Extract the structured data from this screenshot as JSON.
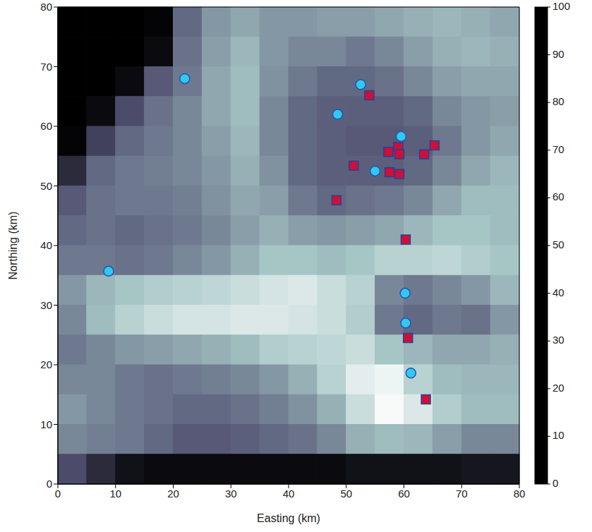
{
  "chart_data": {
    "type": "scatter",
    "x_label": "Easting (km)",
    "y_label": "Northing (km)",
    "xlim": [
      0,
      80
    ],
    "ylim": [
      0,
      80
    ],
    "xticks": [
      0,
      10,
      20,
      30,
      40,
      50,
      60,
      70,
      80
    ],
    "yticks": [
      0,
      10,
      20,
      30,
      40,
      50,
      60,
      70,
      80
    ],
    "grid": false,
    "series": [
      {
        "type": "scatter",
        "marker": "circle",
        "color": "#33c8f0",
        "x": [
          22,
          52.5,
          48.5,
          59.5,
          55,
          8.8,
          60.2,
          60.3,
          61.2
        ],
        "y": [
          68,
          67,
          62,
          58.3,
          52.5,
          35.7,
          32,
          27,
          18.6
        ]
      },
      {
        "type": "scatter",
        "marker": "square",
        "color": "#cc1038",
        "x": [
          54,
          57.3,
          59,
          59.2,
          63.5,
          65.3,
          51.3,
          57.5,
          59.2,
          48.3,
          60.3,
          60.7,
          63.8
        ],
        "y": [
          65.2,
          55.7,
          56.5,
          55.3,
          55.3,
          56.8,
          53.4,
          52.3,
          52,
          47.6,
          41,
          24.5,
          14.2
        ]
      }
    ],
    "heatmap": {
      "x_edges": [
        0,
        5,
        10,
        15,
        20,
        25,
        30,
        35,
        40,
        45,
        50,
        55,
        60,
        65,
        70,
        75,
        80
      ],
      "y_edges": [
        80,
        75,
        70,
        65,
        60,
        55,
        50,
        45,
        40,
        35,
        30,
        25,
        20,
        15,
        10,
        5,
        0
      ],
      "values": [
        [
          0,
          0,
          0,
          2,
          45,
          60,
          65,
          60,
          60,
          62,
          62,
          65,
          68,
          70,
          68,
          65
        ],
        [
          0,
          0,
          0,
          5,
          48,
          62,
          70,
          60,
          55,
          55,
          50,
          55,
          62,
          68,
          70,
          68
        ],
        [
          0,
          0,
          5,
          40,
          50,
          65,
          72,
          58,
          50,
          45,
          45,
          48,
          55,
          62,
          65,
          65
        ],
        [
          0,
          5,
          35,
          48,
          55,
          65,
          72,
          55,
          45,
          42,
          42,
          42,
          45,
          55,
          60,
          62
        ],
        [
          2,
          30,
          45,
          50,
          55,
          62,
          70,
          55,
          45,
          42,
          40,
          40,
          42,
          50,
          60,
          65
        ],
        [
          20,
          45,
          50,
          52,
          55,
          60,
          68,
          58,
          45,
          42,
          42,
          42,
          45,
          55,
          65,
          70
        ],
        [
          40,
          48,
          50,
          50,
          52,
          58,
          65,
          62,
          50,
          45,
          48,
          50,
          55,
          65,
          72,
          72
        ],
        [
          45,
          48,
          45,
          48,
          50,
          55,
          62,
          68,
          62,
          60,
          62,
          65,
          70,
          75,
          75,
          72
        ],
        [
          50,
          50,
          48,
          50,
          55,
          60,
          68,
          75,
          75,
          72,
          75,
          80,
          80,
          82,
          78,
          75
        ],
        [
          60,
          70,
          75,
          78,
          80,
          82,
          85,
          88,
          90,
          85,
          80,
          55,
          50,
          55,
          60,
          70
        ],
        [
          55,
          72,
          80,
          85,
          88,
          88,
          90,
          90,
          88,
          85,
          78,
          50,
          45,
          50,
          48,
          60
        ],
        [
          50,
          55,
          60,
          62,
          65,
          68,
          72,
          78,
          80,
          82,
          85,
          75,
          70,
          65,
          65,
          68
        ],
        [
          55,
          55,
          50,
          48,
          50,
          52,
          55,
          60,
          68,
          80,
          92,
          95,
          80,
          72,
          70,
          70
        ],
        [
          60,
          55,
          50,
          48,
          45,
          45,
          48,
          52,
          58,
          68,
          85,
          98,
          90,
          78,
          72,
          72
        ],
        [
          55,
          52,
          50,
          45,
          40,
          40,
          42,
          45,
          48,
          55,
          68,
          72,
          70,
          62,
          55,
          55
        ],
        [
          35,
          20,
          8,
          5,
          5,
          5,
          5,
          5,
          5,
          5,
          8,
          8,
          8,
          8,
          10,
          10
        ]
      ]
    },
    "colorbar": {
      "range": [
        0,
        100
      ],
      "ticks": [
        0,
        10,
        20,
        30,
        40,
        50,
        60,
        70,
        80,
        90,
        100
      ]
    }
  }
}
